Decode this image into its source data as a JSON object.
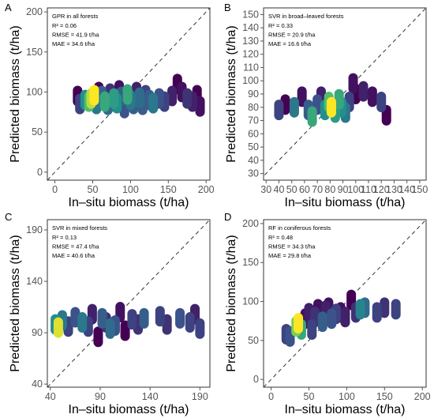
{
  "chart_data": [
    {
      "panel": "A",
      "type": "scatter",
      "title": "GPR in all forests",
      "stats": [
        "R² = 0.06",
        "RMSE = 41.9 t/ha",
        "MAE = 34.6 t/ha"
      ],
      "xlabel": "In–situ biomass (t/ha)",
      "ylabel": "Predicted biomass (t/ha)",
      "xlim": [
        -10,
        205
      ],
      "ylim": [
        -10,
        205
      ],
      "xticks": [
        "0",
        "50",
        "100",
        "150",
        "200"
      ],
      "yticks": [
        "0",
        "50",
        "100",
        "150",
        "200"
      ],
      "reference_line": "1:1 dashed",
      "points": [
        {
          "x": 30,
          "y": 95,
          "c": 0.0
        },
        {
          "x": 33,
          "y": 85,
          "c": 0.2
        },
        {
          "x": 40,
          "y": 90,
          "c": 0.5
        },
        {
          "x": 45,
          "y": 88,
          "c": 0.7
        },
        {
          "x": 48,
          "y": 92,
          "c": 0.9
        },
        {
          "x": 52,
          "y": 96,
          "c": 1.0
        },
        {
          "x": 55,
          "y": 85,
          "c": 0.4
        },
        {
          "x": 58,
          "y": 100,
          "c": 0.0
        },
        {
          "x": 62,
          "y": 95,
          "c": 0.3
        },
        {
          "x": 66,
          "y": 88,
          "c": 0.6
        },
        {
          "x": 70,
          "y": 84,
          "c": 0.35
        },
        {
          "x": 73,
          "y": 98,
          "c": 0.15
        },
        {
          "x": 78,
          "y": 92,
          "c": 0.55
        },
        {
          "x": 82,
          "y": 86,
          "c": 0.5
        },
        {
          "x": 85,
          "y": 102,
          "c": 0.05
        },
        {
          "x": 88,
          "y": 94,
          "c": 0.3
        },
        {
          "x": 92,
          "y": 80,
          "c": 0.25
        },
        {
          "x": 96,
          "y": 97,
          "c": 0.6
        },
        {
          "x": 100,
          "y": 90,
          "c": 0.4
        },
        {
          "x": 104,
          "y": 85,
          "c": 0.3
        },
        {
          "x": 108,
          "y": 100,
          "c": 0.1
        },
        {
          "x": 112,
          "y": 93,
          "c": 0.35
        },
        {
          "x": 116,
          "y": 84,
          "c": 0.3
        },
        {
          "x": 120,
          "y": 96,
          "c": 0.2
        },
        {
          "x": 125,
          "y": 90,
          "c": 0.3
        },
        {
          "x": 130,
          "y": 86,
          "c": 0.4
        },
        {
          "x": 138,
          "y": 92,
          "c": 0.25
        },
        {
          "x": 145,
          "y": 88,
          "c": 0.2
        },
        {
          "x": 155,
          "y": 95,
          "c": 0.1
        },
        {
          "x": 162,
          "y": 110,
          "c": 0.0
        },
        {
          "x": 168,
          "y": 100,
          "c": 0.05
        },
        {
          "x": 175,
          "y": 92,
          "c": 0.15
        },
        {
          "x": 182,
          "y": 88,
          "c": 0.1
        },
        {
          "x": 188,
          "y": 96,
          "c": 0.0
        },
        {
          "x": 192,
          "y": 82,
          "c": 0.05
        }
      ]
    },
    {
      "panel": "B",
      "type": "scatter",
      "title": "SVR in broad–leaved forests",
      "stats": [
        "R² = 0.33",
        "RMSE = 20.9 t/ha",
        "MAE = 16.6 t/ha"
      ],
      "xlabel": "In–situ biomass (t/ha)",
      "ylabel": "Predicted biomass (t/ha)",
      "xlim": [
        28,
        155
      ],
      "ylim": [
        25,
        155
      ],
      "xticks": [
        "30",
        "40",
        "50",
        "60",
        "70",
        "80",
        "90",
        "100",
        "110",
        "120",
        "130",
        "140",
        "150"
      ],
      "yticks": [
        "30",
        "40",
        "50",
        "60",
        "70",
        "80",
        "90",
        "100",
        "110",
        "120",
        "130",
        "140",
        "150"
      ],
      "reference_line": "1:1 dashed",
      "points": [
        {
          "x": 40,
          "y": 78,
          "c": 0.2
        },
        {
          "x": 45,
          "y": 82,
          "c": 0.0
        },
        {
          "x": 52,
          "y": 80,
          "c": 0.4
        },
        {
          "x": 58,
          "y": 88,
          "c": 0.05
        },
        {
          "x": 63,
          "y": 78,
          "c": 0.3
        },
        {
          "x": 66,
          "y": 73,
          "c": 0.6
        },
        {
          "x": 70,
          "y": 82,
          "c": 0.25
        },
        {
          "x": 73,
          "y": 88,
          "c": 0.1
        },
        {
          "x": 76,
          "y": 78,
          "c": 0.5
        },
        {
          "x": 79,
          "y": 84,
          "c": 0.7
        },
        {
          "x": 81,
          "y": 80,
          "c": 1.0
        },
        {
          "x": 84,
          "y": 76,
          "c": 0.55
        },
        {
          "x": 87,
          "y": 86,
          "c": 0.6
        },
        {
          "x": 89,
          "y": 80,
          "c": 0.5
        },
        {
          "x": 92,
          "y": 76,
          "c": 0.4
        },
        {
          "x": 95,
          "y": 84,
          "c": 0.2
        },
        {
          "x": 98,
          "y": 98,
          "c": 0.05
        },
        {
          "x": 100,
          "y": 90,
          "c": 0.0
        },
        {
          "x": 106,
          "y": 92,
          "c": 0.1
        },
        {
          "x": 113,
          "y": 88,
          "c": 0.05
        },
        {
          "x": 120,
          "y": 84,
          "c": 0.2
        },
        {
          "x": 124,
          "y": 74,
          "c": 0.0
        }
      ]
    },
    {
      "panel": "C",
      "type": "scatter",
      "title": "SVR in mixed forests",
      "stats": [
        "R² = 0.13",
        "RMSE = 47.4 t/ha",
        "MAE = 40.6 t/ha"
      ],
      "xlabel": "In–situ biomass (t/ha)",
      "ylabel": "Predicted biomass (t/ha)",
      "xlim": [
        37,
        200
      ],
      "ylim": [
        37,
        200
      ],
      "xticks": [
        "40",
        "90",
        "140",
        "190"
      ],
      "yticks": [
        "40",
        "90",
        "140",
        "190"
      ],
      "reference_line": "1:1 dashed",
      "points": [
        {
          "x": 45,
          "y": 98,
          "c": 0.5
        },
        {
          "x": 48,
          "y": 95,
          "c": 0.95
        },
        {
          "x": 52,
          "y": 102,
          "c": 0.4
        },
        {
          "x": 58,
          "y": 96,
          "c": 0.2
        },
        {
          "x": 65,
          "y": 105,
          "c": 0.25
        },
        {
          "x": 72,
          "y": 100,
          "c": 0.4
        },
        {
          "x": 78,
          "y": 96,
          "c": 0.2
        },
        {
          "x": 82,
          "y": 108,
          "c": 0.1
        },
        {
          "x": 88,
          "y": 86,
          "c": 0.0
        },
        {
          "x": 92,
          "y": 104,
          "c": 0.3
        },
        {
          "x": 96,
          "y": 100,
          "c": 0.15
        },
        {
          "x": 100,
          "y": 94,
          "c": 0.35
        },
        {
          "x": 105,
          "y": 97,
          "c": 0.25
        },
        {
          "x": 110,
          "y": 110,
          "c": 0.05
        },
        {
          "x": 115,
          "y": 92,
          "c": 0.0
        },
        {
          "x": 122,
          "y": 103,
          "c": 0.2
        },
        {
          "x": 128,
          "y": 98,
          "c": 0.15
        },
        {
          "x": 134,
          "y": 104,
          "c": 0.3
        },
        {
          "x": 150,
          "y": 106,
          "c": 0.2
        },
        {
          "x": 157,
          "y": 98,
          "c": 0.15
        },
        {
          "x": 170,
          "y": 104,
          "c": 0.25
        },
        {
          "x": 180,
          "y": 100,
          "c": 0.2
        },
        {
          "x": 185,
          "y": 108,
          "c": 0.1
        },
        {
          "x": 190,
          "y": 94,
          "c": 0.2
        }
      ]
    },
    {
      "panel": "D",
      "type": "scatter",
      "title": "RF in coniferous  forests",
      "stats": [
        "R² = 0.48",
        "RMSE = 34.3 t/ha",
        "MAE = 29.8 t/ha"
      ],
      "xlabel": "In–situ biomass (t/ha)",
      "ylabel": "Predicted biomass (t/ha)",
      "xlim": [
        -10,
        205
      ],
      "ylim": [
        -10,
        205
      ],
      "xticks": [
        "0",
        "50",
        "100",
        "150",
        "200"
      ],
      "yticks": [
        "0",
        "50",
        "100",
        "150",
        "200"
      ],
      "reference_line": "1:1 dashed",
      "points": [
        {
          "x": 20,
          "y": 58,
          "c": 0.2
        },
        {
          "x": 25,
          "y": 55,
          "c": 0.25
        },
        {
          "x": 33,
          "y": 68,
          "c": 0.8
        },
        {
          "x": 36,
          "y": 72,
          "c": 1.0
        },
        {
          "x": 40,
          "y": 64,
          "c": 0.6
        },
        {
          "x": 45,
          "y": 78,
          "c": 0.05
        },
        {
          "x": 50,
          "y": 85,
          "c": 0.1
        },
        {
          "x": 54,
          "y": 64,
          "c": 0.2
        },
        {
          "x": 58,
          "y": 80,
          "c": 0.15
        },
        {
          "x": 62,
          "y": 90,
          "c": 0.05
        },
        {
          "x": 68,
          "y": 74,
          "c": 0.3
        },
        {
          "x": 72,
          "y": 88,
          "c": 0.1
        },
        {
          "x": 76,
          "y": 92,
          "c": 0.05
        },
        {
          "x": 80,
          "y": 78,
          "c": 0.25
        },
        {
          "x": 86,
          "y": 84,
          "c": 0.2
        },
        {
          "x": 92,
          "y": 86,
          "c": 0.05
        },
        {
          "x": 98,
          "y": 80,
          "c": 0.1
        },
        {
          "x": 106,
          "y": 102,
          "c": 0.0
        },
        {
          "x": 112,
          "y": 86,
          "c": 0.15
        },
        {
          "x": 118,
          "y": 90,
          "c": 0.45
        },
        {
          "x": 124,
          "y": 92,
          "c": 0.35
        },
        {
          "x": 140,
          "y": 86,
          "c": 0.2
        },
        {
          "x": 150,
          "y": 92,
          "c": 0.15
        },
        {
          "x": 165,
          "y": 90,
          "c": 0.2
        }
      ]
    }
  ],
  "colormap": [
    "#440154",
    "#3b528b",
    "#21908d",
    "#5dc963",
    "#fde725"
  ]
}
